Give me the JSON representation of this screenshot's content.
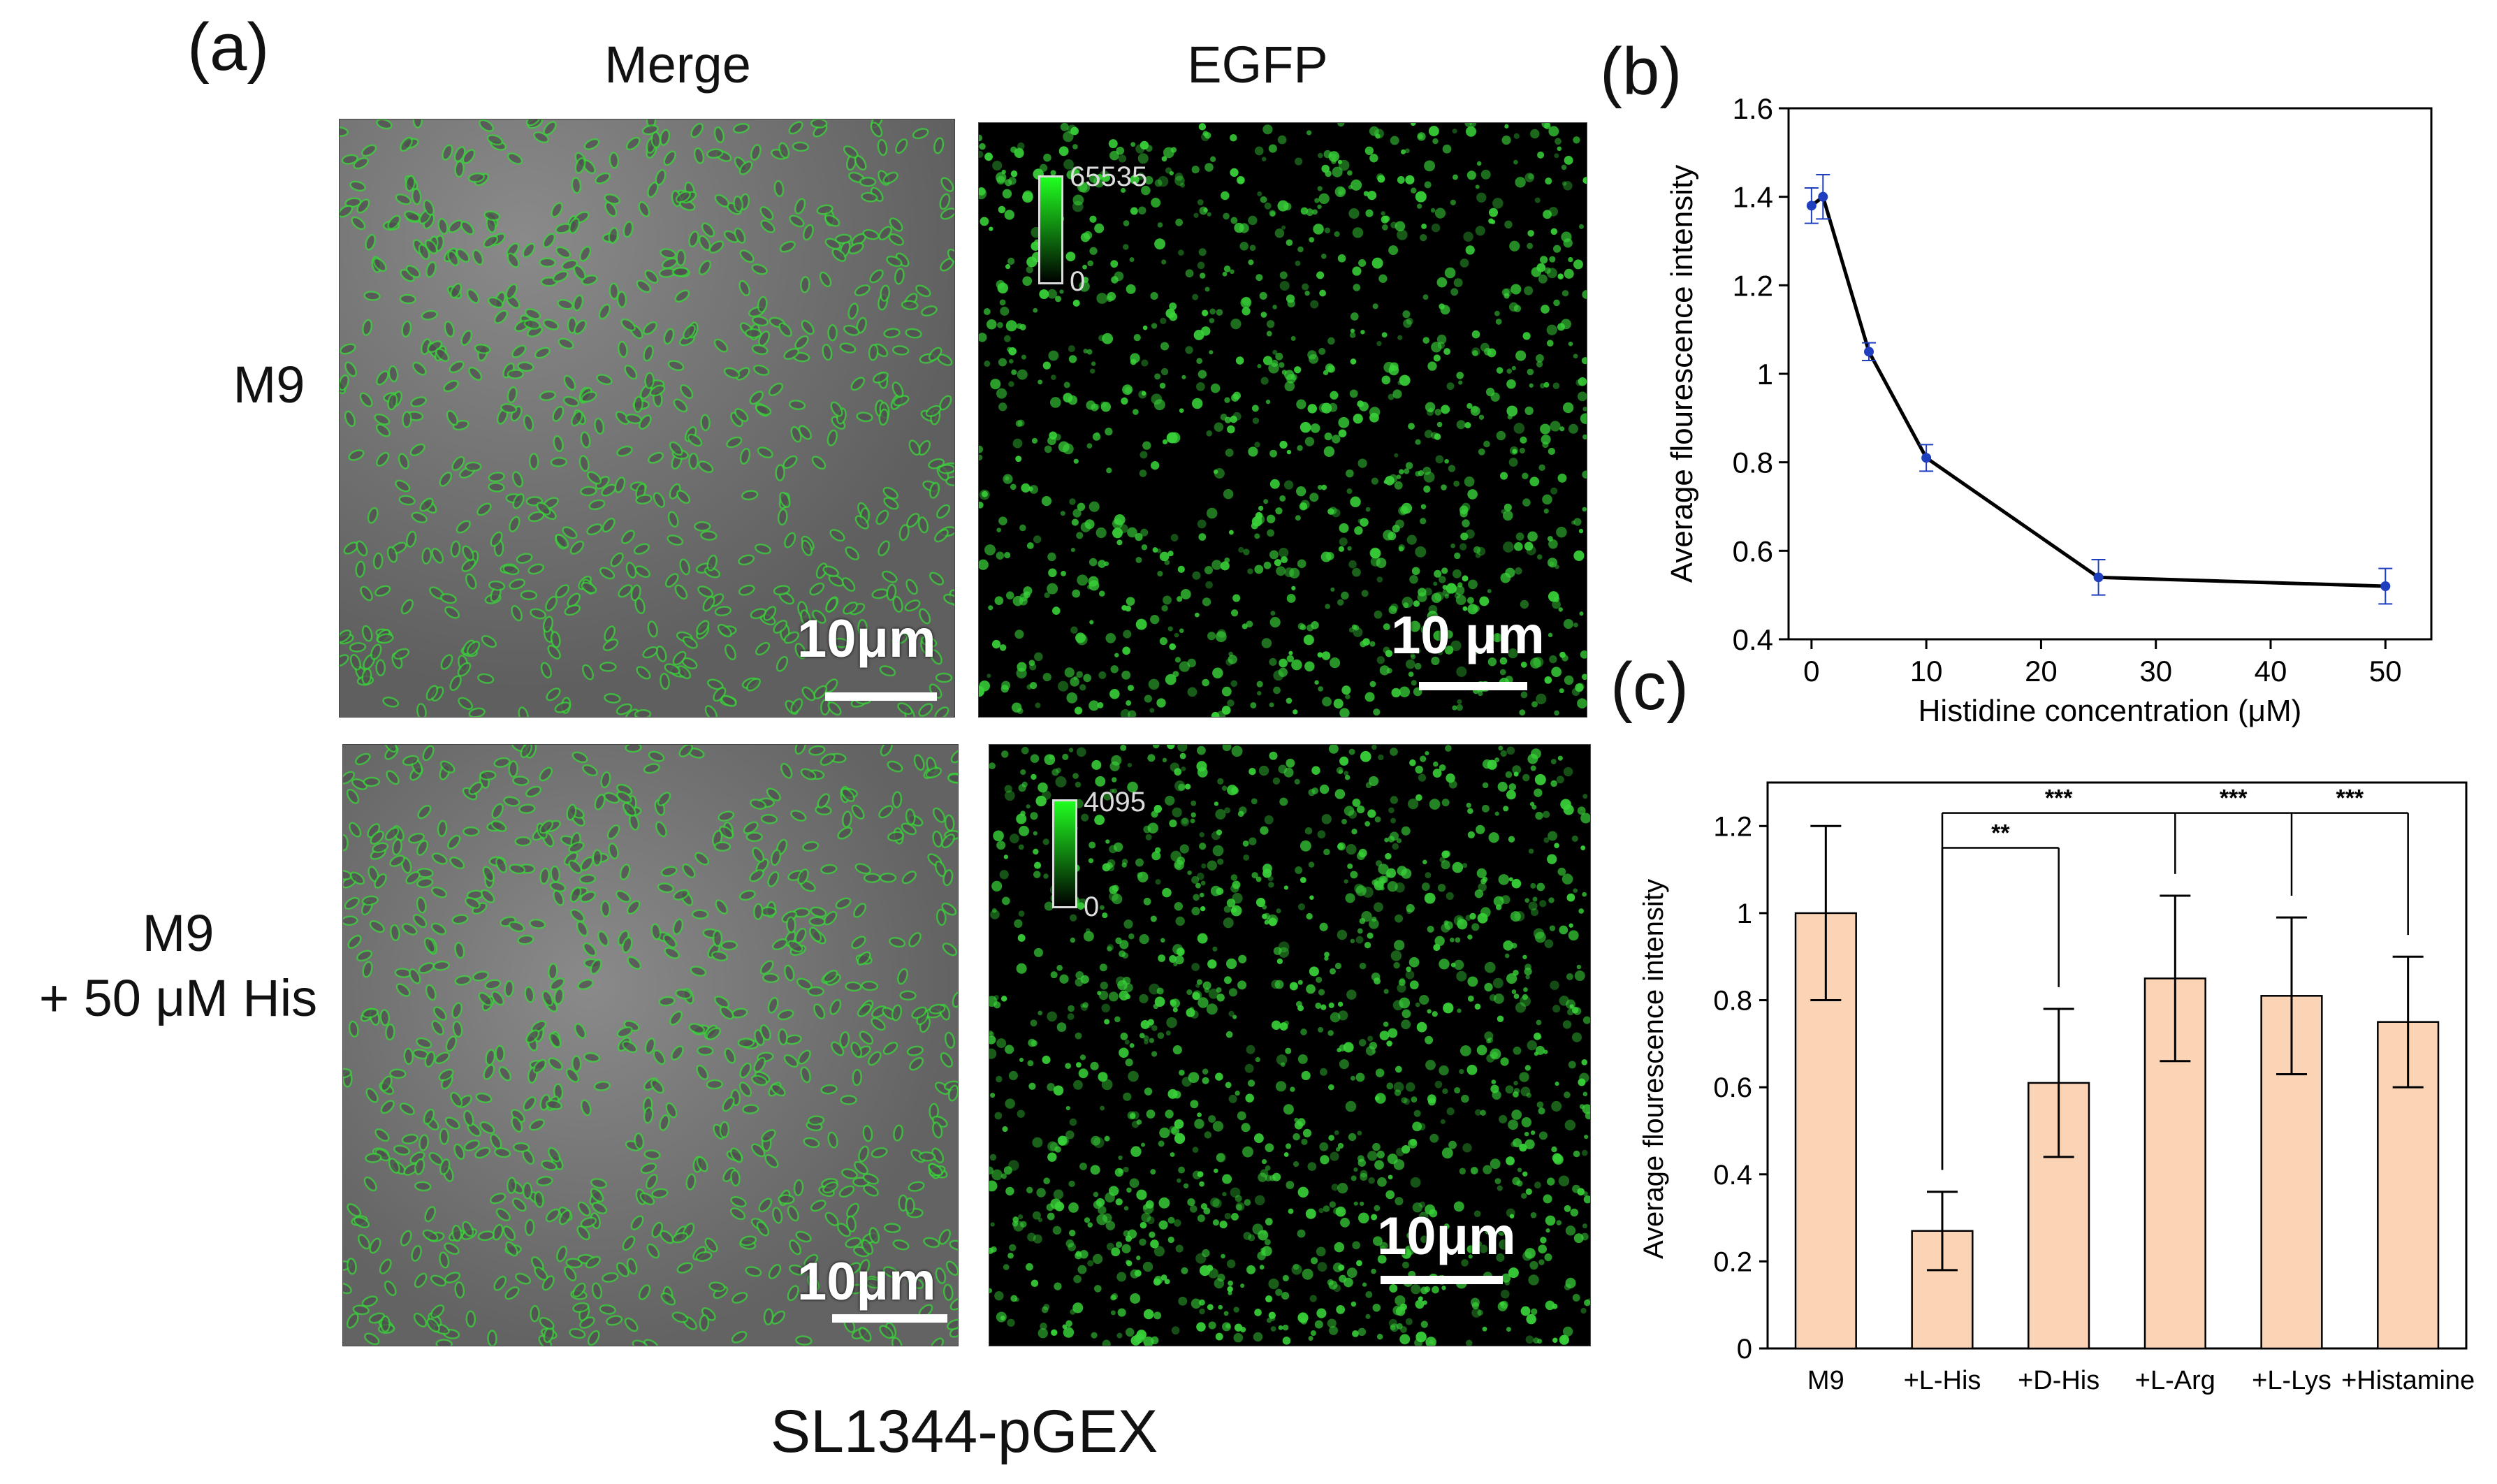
{
  "figure": {
    "panels": {
      "a": "(a)",
      "b": "(b)",
      "c": "(c)"
    },
    "column_titles": {
      "merge": "Merge",
      "egfp": "EGFP"
    },
    "row_labels": {
      "row1": "M9",
      "row2_line1": "M9",
      "row2_line2": "+ 50 μM His"
    },
    "scale_bars": {
      "merge_top": "10μm",
      "egfp_top": "10 μm",
      "merge_bottom": "10μm",
      "egfp_bottom": "10μm"
    },
    "colorbars": {
      "top": {
        "max": "65535",
        "min": "0"
      },
      "bottom": {
        "max": "4095",
        "min": "0"
      }
    },
    "caption": "SL1344-pGEX",
    "colors": {
      "egfp_green": "#39d339",
      "bar_fill": "#fbd3b5",
      "line_marker": "#1f3fbf"
    }
  },
  "chart_data": [
    {
      "type": "line",
      "panel": "b",
      "xlabel": "Histidine concentration (μM)",
      "ylabel": "Average flourescence intensity",
      "xlim": [
        -2,
        54
      ],
      "ylim": [
        0.4,
        1.6
      ],
      "xticks": [
        "0",
        "10",
        "20",
        "30",
        "40",
        "50"
      ],
      "yticks": [
        "0.4",
        "0.6",
        "0.8",
        "1",
        "1.2",
        "1.4",
        "1.6"
      ],
      "x": [
        0,
        1,
        5,
        10,
        25,
        50
      ],
      "y": [
        1.38,
        1.4,
        1.05,
        0.81,
        0.54,
        0.52
      ],
      "error": [
        0.04,
        0.05,
        0.02,
        0.03,
        0.04,
        0.04
      ]
    },
    {
      "type": "bar",
      "panel": "c",
      "ylabel": "Average flourescence intensity",
      "ylim": [
        0,
        1.3
      ],
      "yticks": [
        "0",
        "0.2",
        "0.4",
        "0.6",
        "0.8",
        "1",
        "1.2"
      ],
      "categories": [
        "M9",
        "+L-His",
        "+D-His",
        "+L-Arg",
        "+L-Lys",
        "+Histamine"
      ],
      "values": [
        1.0,
        0.27,
        0.61,
        0.85,
        0.81,
        0.75
      ],
      "error": [
        0.2,
        0.09,
        0.17,
        0.19,
        0.18,
        0.15
      ],
      "significance": [
        {
          "from": "+L-His",
          "to": "+D-His",
          "label": "**"
        },
        {
          "from": "+L-His",
          "to": "+L-Arg",
          "label": "***"
        },
        {
          "from": "+L-Arg",
          "to": "+L-Lys",
          "label": "***"
        },
        {
          "from": "+L-Lys",
          "to": "+Histamine",
          "label": "***"
        }
      ]
    }
  ]
}
